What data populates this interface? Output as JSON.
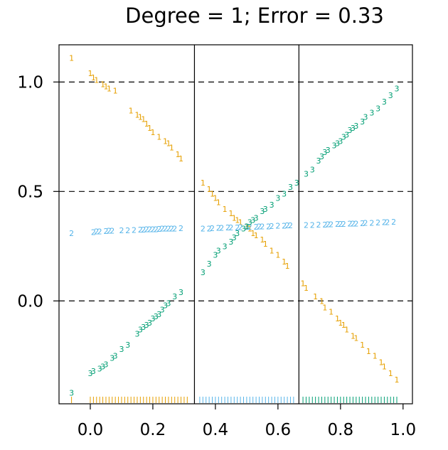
{
  "chart_data": {
    "type": "scatter",
    "title": "Degree = 1; Error = 0.33",
    "xlabel": "",
    "ylabel": "",
    "xlim": [
      -0.1,
      1.03
    ],
    "ylim": [
      -0.47,
      1.17
    ],
    "x_ticks": [
      "0.0",
      "0.2",
      "0.4",
      "0.6",
      "0.8",
      "1.0"
    ],
    "y_ticks": [
      "0.0",
      "0.5",
      "1.0"
    ],
    "grid": "dashed horizontal lines at y = 0, 0.5, 1",
    "class_boundaries": [
      0.333,
      0.667
    ],
    "colors": {
      "class1": "#E69F00",
      "class2": "#56B4E9",
      "class3": "#009E73"
    },
    "series": [
      {
        "name": "1",
        "label_char": "1",
        "color": "#E69F00",
        "points": [
          [
            -0.06,
            1.11
          ],
          [
            0.0,
            1.04
          ],
          [
            0.01,
            1.02
          ],
          [
            0.02,
            1.01
          ],
          [
            0.04,
            0.99
          ],
          [
            0.05,
            0.98
          ],
          [
            0.06,
            0.97
          ],
          [
            0.08,
            0.96
          ],
          [
            0.13,
            0.87
          ],
          [
            0.15,
            0.85
          ],
          [
            0.16,
            0.84
          ],
          [
            0.17,
            0.83
          ],
          [
            0.18,
            0.81
          ],
          [
            0.19,
            0.79
          ],
          [
            0.2,
            0.77
          ],
          [
            0.22,
            0.75
          ],
          [
            0.24,
            0.73
          ],
          [
            0.25,
            0.72
          ],
          [
            0.26,
            0.7
          ],
          [
            0.28,
            0.67
          ],
          [
            0.29,
            0.65
          ],
          [
            0.36,
            0.54
          ],
          [
            0.38,
            0.51
          ],
          [
            0.39,
            0.49
          ],
          [
            0.4,
            0.47
          ],
          [
            0.41,
            0.45
          ],
          [
            0.43,
            0.42
          ],
          [
            0.45,
            0.4
          ],
          [
            0.46,
            0.38
          ],
          [
            0.47,
            0.37
          ],
          [
            0.48,
            0.36
          ],
          [
            0.5,
            0.34
          ],
          [
            0.51,
            0.33
          ],
          [
            0.52,
            0.31
          ],
          [
            0.53,
            0.3
          ],
          [
            0.55,
            0.28
          ],
          [
            0.56,
            0.26
          ],
          [
            0.58,
            0.23
          ],
          [
            0.6,
            0.21
          ],
          [
            0.62,
            0.18
          ],
          [
            0.63,
            0.16
          ],
          [
            0.68,
            0.08
          ],
          [
            0.69,
            0.06
          ],
          [
            0.72,
            0.02
          ],
          [
            0.74,
            0.0
          ],
          [
            0.75,
            -0.03
          ],
          [
            0.77,
            -0.05
          ],
          [
            0.79,
            -0.08
          ],
          [
            0.8,
            -0.1
          ],
          [
            0.81,
            -0.11
          ],
          [
            0.82,
            -0.13
          ],
          [
            0.84,
            -0.16
          ],
          [
            0.85,
            -0.17
          ],
          [
            0.87,
            -0.2
          ],
          [
            0.89,
            -0.23
          ],
          [
            0.91,
            -0.25
          ],
          [
            0.93,
            -0.28
          ],
          [
            0.94,
            -0.3
          ],
          [
            0.96,
            -0.33
          ],
          [
            0.98,
            -0.36
          ]
        ]
      },
      {
        "name": "2",
        "label_char": "2",
        "color": "#56B4E9",
        "points": [
          [
            -0.06,
            0.31
          ],
          [
            0.01,
            0.315
          ],
          [
            0.02,
            0.317
          ],
          [
            0.03,
            0.318
          ],
          [
            0.05,
            0.319
          ],
          [
            0.06,
            0.32
          ],
          [
            0.07,
            0.32
          ],
          [
            0.1,
            0.322
          ],
          [
            0.12,
            0.323
          ],
          [
            0.14,
            0.324
          ],
          [
            0.16,
            0.325
          ],
          [
            0.17,
            0.326
          ],
          [
            0.18,
            0.327
          ],
          [
            0.19,
            0.327
          ],
          [
            0.2,
            0.328
          ],
          [
            0.21,
            0.328
          ],
          [
            0.22,
            0.329
          ],
          [
            0.23,
            0.33
          ],
          [
            0.24,
            0.33
          ],
          [
            0.25,
            0.33
          ],
          [
            0.26,
            0.331
          ],
          [
            0.27,
            0.331
          ],
          [
            0.29,
            0.332
          ],
          [
            0.36,
            0.33
          ],
          [
            0.38,
            0.331
          ],
          [
            0.39,
            0.332
          ],
          [
            0.41,
            0.333
          ],
          [
            0.42,
            0.334
          ],
          [
            0.44,
            0.335
          ],
          [
            0.45,
            0.335
          ],
          [
            0.47,
            0.336
          ],
          [
            0.48,
            0.337
          ],
          [
            0.5,
            0.338
          ],
          [
            0.51,
            0.338
          ],
          [
            0.53,
            0.339
          ],
          [
            0.54,
            0.34
          ],
          [
            0.55,
            0.34
          ],
          [
            0.57,
            0.341
          ],
          [
            0.58,
            0.342
          ],
          [
            0.6,
            0.343
          ],
          [
            0.62,
            0.344
          ],
          [
            0.63,
            0.345
          ],
          [
            0.64,
            0.345
          ],
          [
            0.69,
            0.346
          ],
          [
            0.71,
            0.347
          ],
          [
            0.73,
            0.348
          ],
          [
            0.75,
            0.349
          ],
          [
            0.76,
            0.35
          ],
          [
            0.77,
            0.35
          ],
          [
            0.79,
            0.351
          ],
          [
            0.8,
            0.352
          ],
          [
            0.81,
            0.352
          ],
          [
            0.83,
            0.353
          ],
          [
            0.84,
            0.354
          ],
          [
            0.85,
            0.354
          ],
          [
            0.87,
            0.355
          ],
          [
            0.88,
            0.356
          ],
          [
            0.9,
            0.357
          ],
          [
            0.92,
            0.358
          ],
          [
            0.94,
            0.359
          ],
          [
            0.95,
            0.36
          ],
          [
            0.97,
            0.361
          ]
        ]
      },
      {
        "name": "3",
        "label_char": "3",
        "color": "#009E73",
        "points": [
          [
            -0.06,
            -0.42
          ],
          [
            0.0,
            -0.33
          ],
          [
            0.01,
            -0.32
          ],
          [
            0.03,
            -0.31
          ],
          [
            0.04,
            -0.3
          ],
          [
            0.05,
            -0.29
          ],
          [
            0.07,
            -0.26
          ],
          [
            0.08,
            -0.25
          ],
          [
            0.1,
            -0.22
          ],
          [
            0.12,
            -0.2
          ],
          [
            0.15,
            -0.15
          ],
          [
            0.16,
            -0.13
          ],
          [
            0.17,
            -0.12
          ],
          [
            0.18,
            -0.11
          ],
          [
            0.19,
            -0.1
          ],
          [
            0.2,
            -0.08
          ],
          [
            0.21,
            -0.07
          ],
          [
            0.22,
            -0.06
          ],
          [
            0.23,
            -0.04
          ],
          [
            0.24,
            -0.02
          ],
          [
            0.25,
            -0.01
          ],
          [
            0.27,
            0.02
          ],
          [
            0.29,
            0.04
          ],
          [
            0.36,
            0.13
          ],
          [
            0.38,
            0.17
          ],
          [
            0.4,
            0.21
          ],
          [
            0.41,
            0.23
          ],
          [
            0.43,
            0.25
          ],
          [
            0.45,
            0.27
          ],
          [
            0.46,
            0.29
          ],
          [
            0.47,
            0.31
          ],
          [
            0.49,
            0.33
          ],
          [
            0.5,
            0.34
          ],
          [
            0.51,
            0.36
          ],
          [
            0.52,
            0.37
          ],
          [
            0.53,
            0.38
          ],
          [
            0.55,
            0.41
          ],
          [
            0.56,
            0.42
          ],
          [
            0.58,
            0.44
          ],
          [
            0.6,
            0.47
          ],
          [
            0.62,
            0.49
          ],
          [
            0.64,
            0.52
          ],
          [
            0.66,
            0.54
          ],
          [
            0.69,
            0.58
          ],
          [
            0.71,
            0.6
          ],
          [
            0.73,
            0.64
          ],
          [
            0.74,
            0.66
          ],
          [
            0.75,
            0.68
          ],
          [
            0.76,
            0.69
          ],
          [
            0.78,
            0.71
          ],
          [
            0.79,
            0.72
          ],
          [
            0.8,
            0.73
          ],
          [
            0.81,
            0.75
          ],
          [
            0.82,
            0.76
          ],
          [
            0.83,
            0.78
          ],
          [
            0.84,
            0.79
          ],
          [
            0.85,
            0.8
          ],
          [
            0.87,
            0.82
          ],
          [
            0.88,
            0.84
          ],
          [
            0.9,
            0.86
          ],
          [
            0.92,
            0.88
          ],
          [
            0.94,
            0.91
          ],
          [
            0.96,
            0.94
          ],
          [
            0.98,
            0.97
          ]
        ]
      }
    ],
    "rug": [
      {
        "class": "1",
        "x": [
          -0.06,
          0.0,
          0.01,
          0.02,
          0.03,
          0.04,
          0.05,
          0.06,
          0.07,
          0.08,
          0.09,
          0.1,
          0.11,
          0.12,
          0.13,
          0.14,
          0.15,
          0.16,
          0.17,
          0.18,
          0.19,
          0.2,
          0.21,
          0.22,
          0.23,
          0.24,
          0.25,
          0.26,
          0.27,
          0.28,
          0.29,
          0.3,
          0.31
        ]
      },
      {
        "class": "2",
        "x": [
          0.35,
          0.36,
          0.37,
          0.38,
          0.39,
          0.4,
          0.41,
          0.42,
          0.43,
          0.44,
          0.45,
          0.46,
          0.47,
          0.48,
          0.49,
          0.5,
          0.51,
          0.52,
          0.53,
          0.54,
          0.55,
          0.56,
          0.57,
          0.58,
          0.59,
          0.6,
          0.61,
          0.62,
          0.63,
          0.64,
          0.65
        ]
      },
      {
        "class": "3",
        "x": [
          0.68,
          0.69,
          0.7,
          0.71,
          0.72,
          0.73,
          0.74,
          0.75,
          0.76,
          0.77,
          0.78,
          0.79,
          0.8,
          0.81,
          0.82,
          0.83,
          0.84,
          0.85,
          0.86,
          0.87,
          0.88,
          0.89,
          0.9,
          0.91,
          0.92,
          0.93,
          0.94,
          0.95,
          0.96,
          0.97,
          0.98
        ]
      }
    ]
  }
}
